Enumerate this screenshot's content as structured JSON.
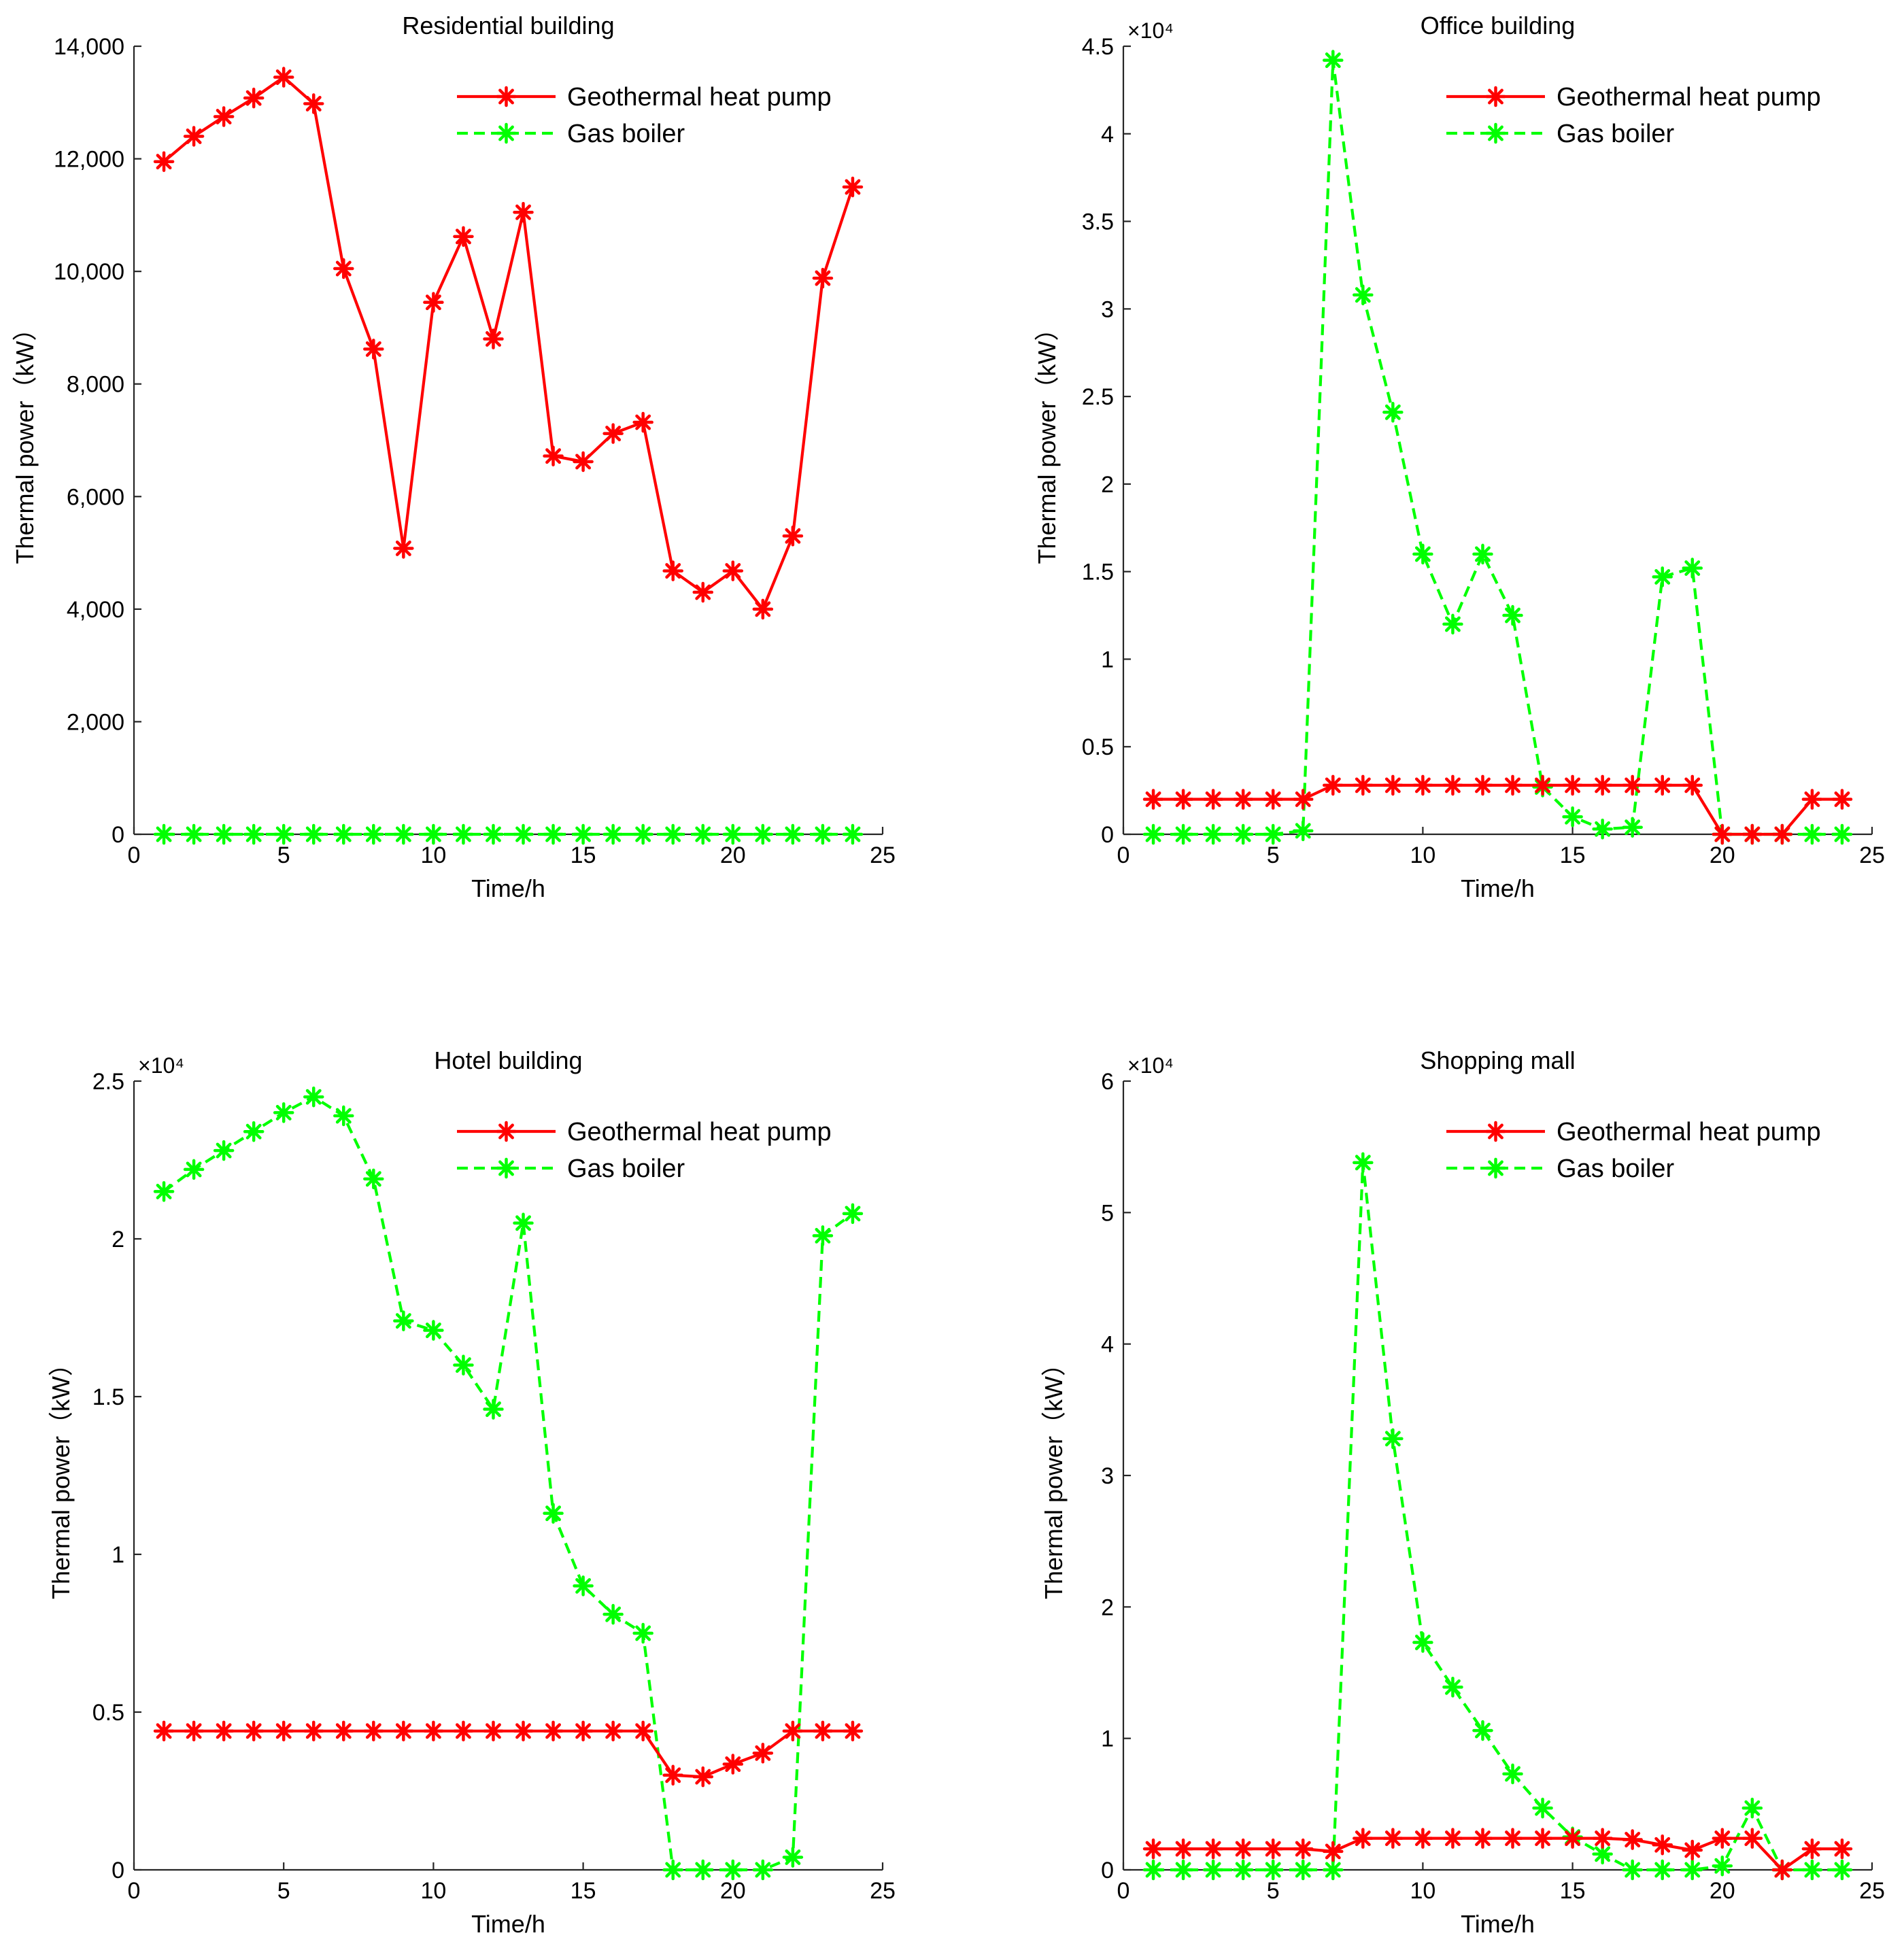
{
  "figure": {
    "colors": {
      "heat_pump": "#ff0000",
      "gas_boiler": "#00ff00",
      "axis": "#262626"
    }
  },
  "chart_data": [
    {
      "type": "line",
      "title": "Residential building",
      "xlabel": "Time/h",
      "ylabel": "Thermal power（kW）",
      "xlim": [
        0,
        25
      ],
      "ylim": [
        0,
        14000
      ],
      "x_ticks": [
        0,
        5,
        10,
        15,
        20,
        25
      ],
      "x_tick_labels": [
        "0",
        "5",
        "10",
        "15",
        "20",
        "25"
      ],
      "y_ticks": [
        0,
        2000,
        4000,
        6000,
        8000,
        10000,
        12000,
        14000
      ],
      "y_tick_labels": [
        "0",
        "2,000",
        "4,000",
        "6,000",
        "8,000",
        "10,000",
        "12,000",
        "14,000"
      ],
      "exponent_label": "",
      "legend_position": "top-right",
      "x": [
        1,
        2,
        3,
        4,
        5,
        6,
        7,
        8,
        9,
        10,
        11,
        12,
        13,
        14,
        15,
        16,
        17,
        18,
        19,
        20,
        21,
        22,
        23,
        24
      ],
      "series": [
        {
          "name": "Geothermal heat pump",
          "style": "solid",
          "color": "#ff0000",
          "values": [
            11950,
            12400,
            12750,
            13080,
            13450,
            12980,
            10050,
            8620,
            5080,
            9450,
            10620,
            8800,
            11050,
            6720,
            6620,
            7120,
            7320,
            4680,
            4300,
            4680,
            4000,
            5300,
            9880,
            11500
          ]
        },
        {
          "name": "Gas boiler",
          "style": "dashed",
          "color": "#00ff00",
          "values": [
            0,
            0,
            0,
            0,
            0,
            0,
            0,
            0,
            0,
            0,
            0,
            0,
            0,
            0,
            0,
            0,
            0,
            0,
            0,
            0,
            0,
            0,
            0,
            0
          ]
        }
      ]
    },
    {
      "type": "line",
      "title": "Office building",
      "xlabel": "Time/h",
      "ylabel": "Thermal power（kW）",
      "xlim": [
        0,
        25
      ],
      "ylim": [
        0,
        45000
      ],
      "x_ticks": [
        0,
        5,
        10,
        15,
        20,
        25
      ],
      "x_tick_labels": [
        "0",
        "5",
        "10",
        "15",
        "20",
        "25"
      ],
      "y_ticks": [
        0,
        5000,
        10000,
        15000,
        20000,
        25000,
        30000,
        35000,
        40000,
        45000
      ],
      "y_tick_labels": [
        "0",
        "0.5",
        "1",
        "1.5",
        "2",
        "2.5",
        "3",
        "3.5",
        "4",
        "4.5"
      ],
      "exponent_label": "×10⁴",
      "legend_position": "top-right",
      "x": [
        1,
        2,
        3,
        4,
        5,
        6,
        7,
        8,
        9,
        10,
        11,
        12,
        13,
        14,
        15,
        16,
        17,
        18,
        19,
        20,
        21,
        22,
        23,
        24
      ],
      "series": [
        {
          "name": "Geothermal heat pump",
          "style": "solid",
          "color": "#ff0000",
          "values": [
            2000,
            2000,
            2000,
            2000,
            2000,
            2000,
            2800,
            2800,
            2800,
            2800,
            2800,
            2800,
            2800,
            2800,
            2800,
            2800,
            2800,
            2800,
            2800,
            0,
            0,
            0,
            2000,
            2000
          ]
        },
        {
          "name": "Gas boiler",
          "style": "dashed",
          "color": "#00ff00",
          "values": [
            0,
            0,
            0,
            0,
            0,
            200,
            44200,
            30800,
            24100,
            16000,
            12000,
            16000,
            12500,
            2700,
            1000,
            300,
            400,
            14700,
            15200,
            0,
            0,
            0,
            0,
            0
          ]
        }
      ]
    },
    {
      "type": "line",
      "title": "Hotel building",
      "xlabel": "Time/h",
      "ylabel": "Thermal power（kW）",
      "xlim": [
        0,
        25
      ],
      "ylim": [
        0,
        25000
      ],
      "x_ticks": [
        0,
        5,
        10,
        15,
        20,
        25
      ],
      "x_tick_labels": [
        "0",
        "5",
        "10",
        "15",
        "20",
        "25"
      ],
      "y_ticks": [
        0,
        5000,
        10000,
        15000,
        20000,
        25000
      ],
      "y_tick_labels": [
        "0",
        "0.5",
        "1",
        "1.5",
        "2",
        "2.5"
      ],
      "exponent_label": "×10⁴",
      "legend_position": "top-right",
      "x": [
        1,
        2,
        3,
        4,
        5,
        6,
        7,
        8,
        9,
        10,
        11,
        12,
        13,
        14,
        15,
        16,
        17,
        18,
        19,
        20,
        21,
        22,
        23,
        24
      ],
      "series": [
        {
          "name": "Geothermal heat pump",
          "style": "solid",
          "color": "#ff0000",
          "values": [
            4400,
            4400,
            4400,
            4400,
            4400,
            4400,
            4400,
            4400,
            4400,
            4400,
            4400,
            4400,
            4400,
            4400,
            4400,
            4400,
            4400,
            3000,
            2950,
            3350,
            3700,
            4400,
            4400,
            4400
          ]
        },
        {
          "name": "Gas boiler",
          "style": "dashed",
          "color": "#00ff00",
          "values": [
            21500,
            22200,
            22800,
            23400,
            24000,
            24500,
            23900,
            21900,
            17400,
            17100,
            16000,
            14600,
            20500,
            11300,
            9000,
            8100,
            7500,
            0,
            0,
            0,
            0,
            400,
            20100,
            20800
          ]
        }
      ]
    },
    {
      "type": "line",
      "title": "Shopping mall",
      "xlabel": "Time/h",
      "ylabel": "Thermal power（kW）",
      "xlim": [
        0,
        25
      ],
      "ylim": [
        0,
        60000
      ],
      "x_ticks": [
        0,
        5,
        10,
        15,
        20,
        25
      ],
      "x_tick_labels": [
        "0",
        "5",
        "10",
        "15",
        "20",
        "25"
      ],
      "y_ticks": [
        0,
        10000,
        20000,
        30000,
        40000,
        50000,
        60000
      ],
      "y_tick_labels": [
        "0",
        "1",
        "2",
        "3",
        "4",
        "5",
        "6"
      ],
      "exponent_label": "×10⁴",
      "legend_position": "top-right",
      "x": [
        1,
        2,
        3,
        4,
        5,
        6,
        7,
        8,
        9,
        10,
        11,
        12,
        13,
        14,
        15,
        16,
        17,
        18,
        19,
        20,
        21,
        22,
        23,
        24
      ],
      "series": [
        {
          "name": "Geothermal heat pump",
          "style": "solid",
          "color": "#ff0000",
          "values": [
            1600,
            1600,
            1600,
            1600,
            1600,
            1600,
            1400,
            2400,
            2400,
            2400,
            2400,
            2400,
            2400,
            2400,
            2400,
            2400,
            2300,
            1900,
            1500,
            2400,
            2400,
            0,
            1600,
            1600
          ]
        },
        {
          "name": "Gas boiler",
          "style": "dashed",
          "color": "#00ff00",
          "values": [
            0,
            0,
            0,
            0,
            0,
            0,
            0,
            53800,
            32800,
            17300,
            13900,
            10600,
            7300,
            4700,
            2500,
            1200,
            0,
            0,
            0,
            300,
            4700,
            0,
            0,
            0
          ]
        }
      ]
    }
  ]
}
